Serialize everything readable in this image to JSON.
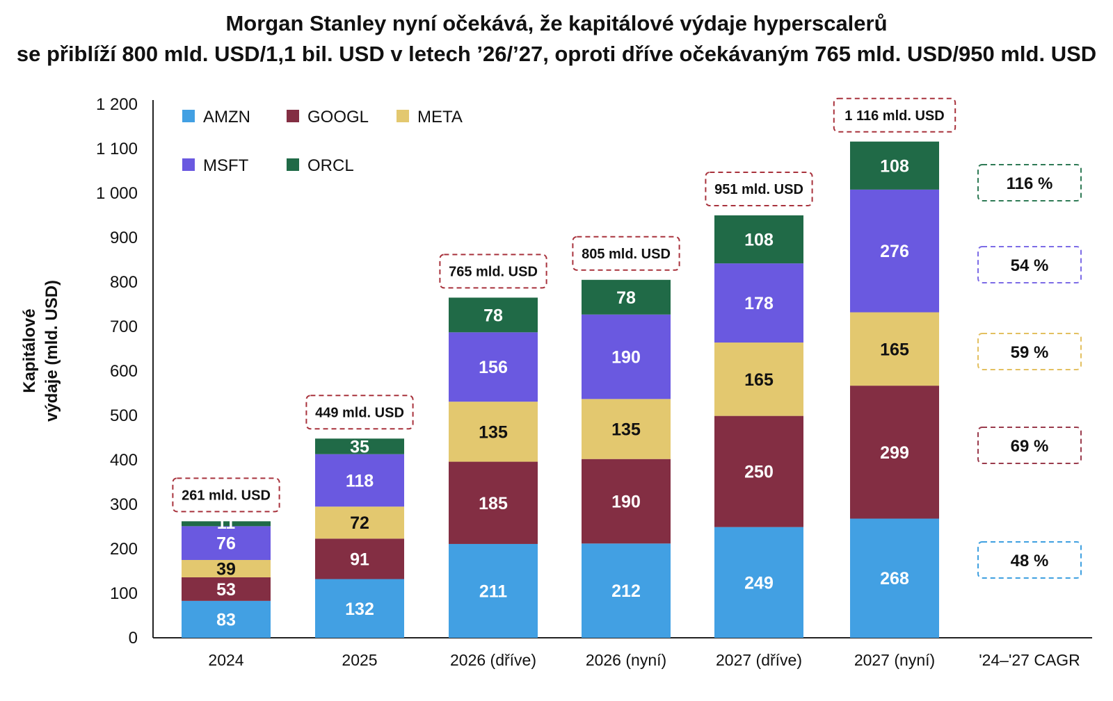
{
  "title_line1": "Morgan Stanley nyní očekává, že kapitálové výdaje hyperscalerů",
  "title_line2": "se přiblíží 800 mld. USD/1,1 bil. USD v letech ’26/’27, oproti dříve očekávaným 765 mld. USD/950 mld. USD",
  "chart_data": {
    "type": "bar",
    "stacked": true,
    "ylabel_lines": [
      "Kapitálové",
      "výdaje (mld. USD)"
    ],
    "ylim": [
      0,
      1200
    ],
    "y_ticks": [
      0,
      100,
      200,
      300,
      400,
      500,
      600,
      700,
      800,
      900,
      1000,
      1100,
      1200
    ],
    "y_tick_labels": [
      "0",
      "100",
      "200",
      "300",
      "400",
      "500",
      "600",
      "700",
      "800",
      "900",
      "1 000",
      "1 100",
      "1 200"
    ],
    "grid": false,
    "legend_position": "top-left",
    "categories": [
      "2024",
      "2025",
      "2026 (dříve)",
      "2026 (nyní)",
      "2027 (dříve)",
      "2027 (nyní)"
    ],
    "series": [
      {
        "name": "AMZN",
        "color": "#42a0e3",
        "label_color": "#ffffff",
        "values": [
          83,
          132,
          211,
          212,
          249,
          268
        ],
        "value_labels": [
          "83",
          "132",
          "211",
          "212",
          "249",
          "268"
        ]
      },
      {
        "name": "GOOGL",
        "color": "#832e43",
        "label_color": "#ffffff",
        "values": [
          53,
          91,
          185,
          190,
          250,
          299
        ],
        "value_labels": [
          "53",
          "91",
          "185",
          "190",
          "250",
          "299"
        ]
      },
      {
        "name": "META",
        "color": "#e3c86f",
        "label_color": "#111111",
        "values": [
          39,
          72,
          135,
          135,
          165,
          165
        ],
        "value_labels": [
          "39",
          "72",
          "135",
          "135",
          "165",
          "165"
        ]
      },
      {
        "name": "MSFT",
        "color": "#6a59e0",
        "label_color": "#ffffff",
        "values": [
          76,
          118,
          156,
          190,
          178,
          276
        ],
        "value_labels": [
          "76",
          "118",
          "156",
          "190",
          "178",
          "276"
        ]
      },
      {
        "name": "ORCL",
        "color": "#206a47",
        "label_color": "#ffffff",
        "values": [
          11,
          35,
          78,
          78,
          108,
          108
        ],
        "value_labels": [
          "11",
          "35",
          "78",
          "78",
          "108",
          "108"
        ]
      }
    ],
    "totals": [
      "261 mld. USD",
      "449 mld. USD",
      "765 mld. USD",
      "805 mld. USD",
      "951 mld. USD",
      "1 116 mld. USD"
    ],
    "totals_border_color": "#a8323c",
    "cagr": {
      "category_label": "'24–'27 CAGR",
      "items": [
        {
          "series": "ORCL",
          "value": 116,
          "label": "116 %",
          "border_color": "#2e7a55"
        },
        {
          "series": "MSFT",
          "value": 54,
          "label": "54 %",
          "border_color": "#7c6be6"
        },
        {
          "series": "META",
          "value": 59,
          "label": "59 %",
          "border_color": "#e3c060"
        },
        {
          "series": "GOOGL",
          "value": 69,
          "label": "69 %",
          "border_color": "#9a3a4c"
        },
        {
          "series": "AMZN",
          "value": 48,
          "label": "48 %",
          "border_color": "#3fa0e0"
        }
      ]
    }
  }
}
